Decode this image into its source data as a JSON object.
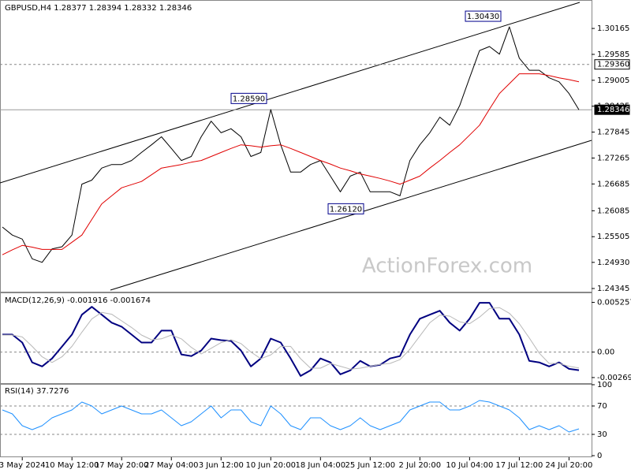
{
  "chart_data": [
    {
      "type": "line",
      "title": "GBPUSD,H4  1.28377 1.28394 1.28332 1.28346",
      "series": [
        {
          "color": "#000000",
          "values": [
            1.2572,
            1.2554,
            1.2545,
            1.2501,
            1.2493,
            1.2523,
            1.2528,
            1.2554,
            1.2668,
            1.2677,
            1.2704,
            1.2712,
            1.2712,
            1.2721,
            1.2739,
            1.2756,
            1.2774,
            1.2748,
            1.2721,
            1.273,
            1.2774,
            1.2809,
            1.2783,
            1.2792,
            1.2774,
            1.273,
            1.2739,
            1.2835,
            1.2756,
            1.2695,
            1.2695,
            1.2712,
            1.2721,
            1.2686,
            1.2651,
            1.2686,
            1.2695,
            1.2651,
            1.2651,
            1.2651,
            1.2642,
            1.2721,
            1.2756,
            1.2783,
            1.2818,
            1.28,
            1.2844,
            1.2906,
            1.2967,
            1.2976,
            1.2959,
            1.302,
            1.295,
            1.2923,
            1.2923,
            1.2906,
            1.2897,
            1.2871,
            1.28346
          ]
        },
        {
          "color": "#e00000",
          "values": [
            1.251,
            1.2521,
            1.2531,
            1.2527,
            1.2522,
            1.2522,
            1.2522,
            1.2538,
            1.2554,
            1.2589,
            1.2624,
            1.2642,
            1.266,
            1.2667,
            1.2674,
            1.2689,
            1.2704,
            1.2708,
            1.2712,
            1.2717,
            1.2721,
            1.273,
            1.2739,
            1.2748,
            1.2756,
            1.2754,
            1.2751,
            1.2754,
            1.2756,
            1.2748,
            1.2739,
            1.273,
            1.2721,
            1.2713,
            1.2704,
            1.2698,
            1.2691,
            1.2686,
            1.2681,
            1.2675,
            1.2668,
            1.2677,
            1.2686,
            1.2704,
            1.2721,
            1.2739,
            1.2756,
            1.2778,
            1.28,
            1.2836,
            1.2871,
            1.2893,
            1.2915,
            1.2915,
            1.2915,
            1.2911,
            1.2906,
            1.2902,
            1.2897
          ]
        }
      ],
      "ylim": [
        1.24274,
        1.30784
      ],
      "yticks": [
        1.30165,
        1.29585,
        1.29005,
        1.28425,
        1.27845,
        1.27265,
        1.26685,
        1.26085,
        1.25505,
        {
          "value": 1.2493,
          "label": "1.24930"
        },
        1.24345
      ],
      "levels": [
        {
          "value": 1.2936,
          "label": "1.29360"
        },
        {
          "value": 1.28346,
          "label": "1.28346"
        }
      ],
      "annotations": [
        {
          "value": 1.3043,
          "label": "1.30430"
        },
        {
          "value": 1.2859,
          "label": "1.28590"
        },
        {
          "value": 1.2612,
          "label": "1.26120"
        }
      ],
      "watermark": "ActionForex.com"
    },
    {
      "type": "line",
      "title": "MACD(12,26,9) -0.001916 -0.001674",
      "series": [
        {
          "color": "#000080",
          "values": [
            0.00185,
            0.00185,
            0.00101,
            -0.00109,
            -0.00151,
            -0.00067,
            0.00059,
            0.00185,
            0.00395,
            0.00479,
            0.00395,
            0.00311,
            0.00269,
            0.00185,
            0.00101,
            0.00101,
            0.00227,
            0.00227,
            -0.00025,
            -0.00042,
            0.00017,
            0.00143,
            0.00126,
            0.00118,
            0.00017,
            -0.00151,
            -0.00067,
            0.00143,
            0.00101,
            -0.00067,
            -0.00252,
            -0.00193,
            -0.00067,
            -0.00109,
            -0.00235,
            -0.00193,
            -0.00093,
            -0.00151,
            -0.00135,
            -0.00067,
            -0.00042,
            0.00185,
            0.00353,
            0.00395,
            0.00437,
            0.00311,
            0.00227,
            0.00353,
            0.00521,
            0.00521,
            0.00353,
            0.00353,
            0.00185,
            -0.00093,
            -0.00109,
            -0.00151,
            -0.00109,
            -0.00177,
            -0.001916
          ]
        },
        {
          "color": "#b8b8b8",
          "values": [
            0.0018,
            0.0018,
            0.0016,
            0.0006,
            -0.0005,
            -0.0011,
            -0.0005,
            0.0006,
            0.0021,
            0.0035,
            0.0042,
            0.004,
            0.0033,
            0.0026,
            0.0018,
            0.0013,
            0.0014,
            0.0018,
            0.0014,
            0.0005,
            -0.0002,
            0.0004,
            0.001,
            0.0013,
            0.0009,
            0.0,
            -0.0007,
            -0.0003,
            0.0006,
            0.0006,
            -0.0007,
            -0.0017,
            -0.0017,
            -0.0012,
            -0.0015,
            -0.0018,
            -0.0017,
            -0.0015,
            -0.0013,
            -0.0012,
            -0.0008,
            0.0003,
            0.0017,
            0.0031,
            0.0039,
            0.0038,
            0.0032,
            0.003,
            0.0037,
            0.0046,
            0.0047,
            0.0041,
            0.003,
            0.0015,
            -0.0001,
            -0.0012,
            -0.0012,
            -0.0015,
            -0.001674
          ]
        }
      ],
      "ylim": [
        -0.00328,
        0.00622
      ],
      "yticks": [
        0.005257,
        {
          "value": 0,
          "label": "0.00"
        },
        -0.00269
      ],
      "levels": [
        0
      ]
    },
    {
      "type": "line",
      "title": "RSI(14) 37.7276",
      "series": [
        {
          "color": "#1e90ff",
          "values": [
            64.4,
            58.9,
            42.2,
            36.7,
            42.2,
            53.3,
            58.9,
            64.4,
            75.6,
            70,
            58.9,
            64.4,
            70,
            64.4,
            58.9,
            58.9,
            64.4,
            53.3,
            42.2,
            47.8,
            58.9,
            70,
            53.3,
            64.4,
            64.4,
            47.8,
            42.2,
            70,
            58.9,
            42.2,
            36.7,
            53.3,
            53.3,
            42.2,
            36.7,
            42.2,
            53.3,
            42.2,
            36.7,
            42.2,
            47.8,
            64.4,
            70,
            75.6,
            75.6,
            64.4,
            64.4,
            70,
            77.8,
            75.6,
            70,
            64.4,
            53.3,
            36.7,
            42.2,
            36.7,
            42.2,
            33.3,
            37.7276
          ]
        }
      ],
      "ylim": [
        0,
        100
      ],
      "yticks": [
        100,
        70,
        30,
        0
      ],
      "levels": [
        70,
        30
      ],
      "categories": [
        null,
        null,
        "3 May 2024",
        null,
        null,
        null,
        null,
        "10 May 12:00",
        null,
        null,
        null,
        null,
        "17 May 20:00",
        null,
        null,
        null,
        null,
        "27 May 04:00",
        null,
        null,
        null,
        null,
        "3 Jun 12:00",
        null,
        null,
        null,
        null,
        "10 Jun 20:00",
        null,
        null,
        null,
        null,
        "18 Jun 04:00",
        null,
        null,
        null,
        null,
        "25 Jun 12:00",
        null,
        null,
        null,
        null,
        "2 Jul 20:00",
        null,
        null,
        null,
        null,
        "10 Jul 04:00",
        null,
        null,
        null,
        null,
        "17 Jul 12:00",
        null,
        null,
        null,
        null,
        "24 Jul 20:00",
        null
      ]
    }
  ]
}
